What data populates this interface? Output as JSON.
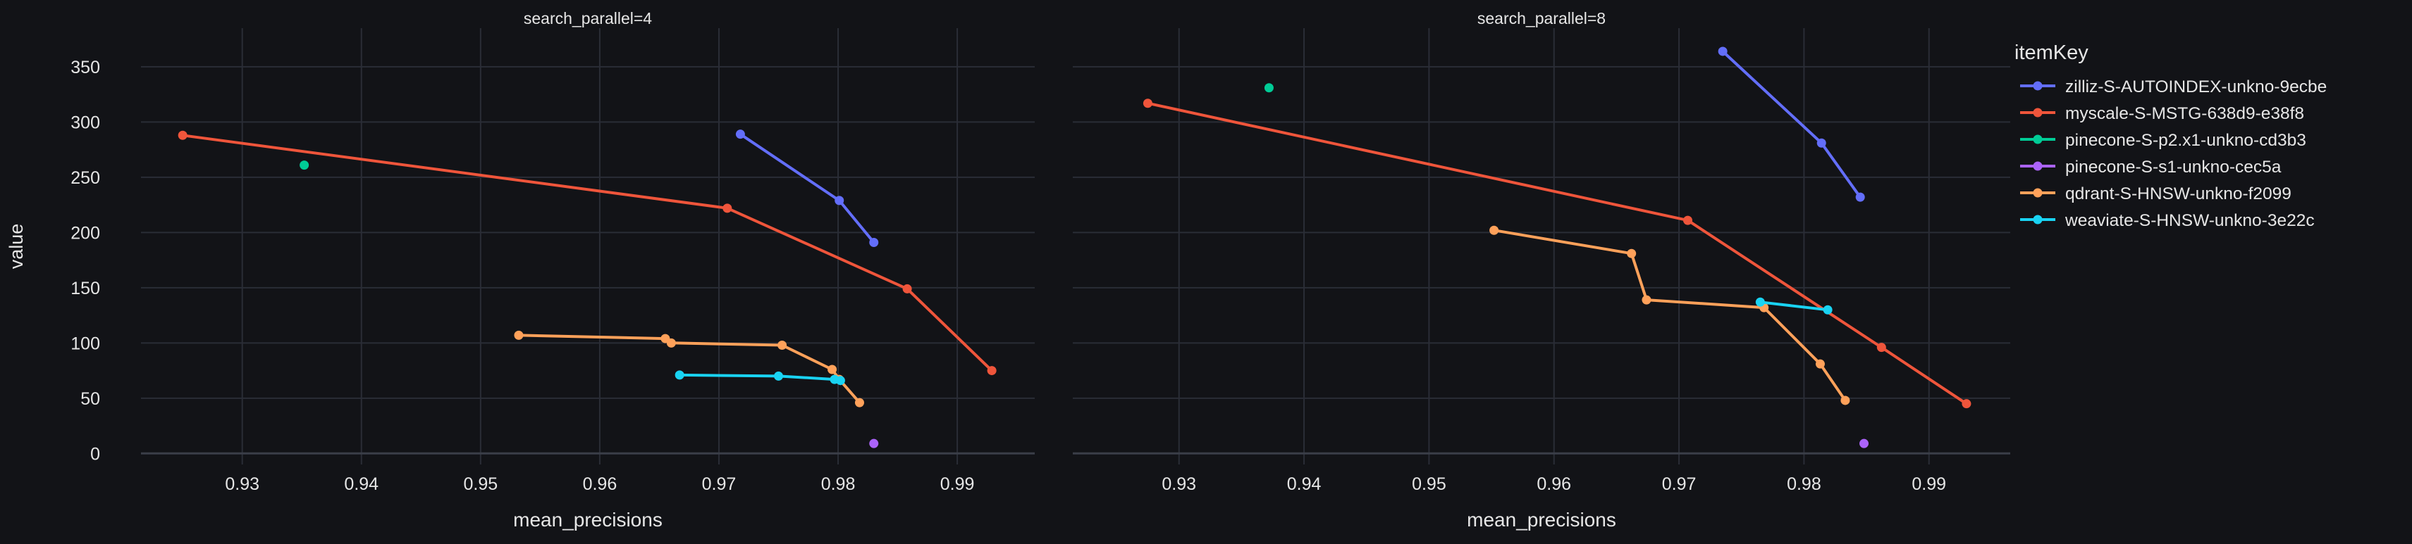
{
  "theme": {
    "background": "#121317",
    "plot_background": "#121317",
    "grid": "#2a2d36",
    "zero_line": "#3a3e48",
    "text": "#e6e6e6"
  },
  "chart_data": {
    "type": "line",
    "shared_ylabel": "value",
    "legend": {
      "title": "itemKey",
      "placement": "right"
    },
    "series_styles": [
      {
        "name": "zilliz-S-AUTOINDEX-unkno-9ecbe",
        "color": "#636efa",
        "mode": "lines+markers"
      },
      {
        "name": "myscale-S-MSTG-638d9-e38f8",
        "color": "#ef553b",
        "mode": "lines+markers"
      },
      {
        "name": "pinecone-S-p2.x1-unkno-cd3b3",
        "color": "#00cc96",
        "mode": "lines+markers"
      },
      {
        "name": "pinecone-S-s1-unkno-cec5a",
        "color": "#ab63fa",
        "mode": "lines+markers"
      },
      {
        "name": "qdrant-S-HNSW-unkno-f2099",
        "color": "#ffa15a",
        "mode": "lines+markers"
      },
      {
        "name": "weaviate-S-HNSW-unkno-3e22c",
        "color": "#19d3f3",
        "mode": "lines+markers"
      }
    ],
    "facets": [
      {
        "title": "search_parallel=4",
        "xlabel": "mean_precisions",
        "xlim": [
          0.9215,
          0.9965
        ],
        "ylim": [
          -10,
          385
        ],
        "xticks": [
          0.93,
          0.94,
          0.95,
          0.96,
          0.97,
          0.98,
          0.99
        ],
        "yticks": [
          0,
          50,
          100,
          150,
          200,
          250,
          300,
          350
        ],
        "grid": true,
        "series": [
          {
            "name": "zilliz-S-AUTOINDEX-unkno-9ecbe",
            "x": [
              0.9718,
              0.9801,
              0.983
            ],
            "y": [
              289,
              229,
              191
            ]
          },
          {
            "name": "myscale-S-MSTG-638d9-e38f8",
            "x": [
              0.925,
              0.9707,
              0.9858,
              0.9929
            ],
            "y": [
              288,
              222,
              149,
              75
            ]
          },
          {
            "name": "pinecone-S-p2.x1-unkno-cd3b3",
            "x": [
              0.9352
            ],
            "y": [
              261
            ]
          },
          {
            "name": "pinecone-S-s1-unkno-cec5a",
            "x": [
              0.983
            ],
            "y": [
              9
            ]
          },
          {
            "name": "qdrant-S-HNSW-unkno-f2099",
            "x": [
              0.9532,
              0.9655,
              0.966,
              0.9753,
              0.9795,
              0.9801,
              0.9818
            ],
            "y": [
              107,
              104,
              100,
              98,
              76,
              67,
              46
            ]
          },
          {
            "name": "weaviate-S-HNSW-unkno-3e22c",
            "x": [
              0.9667,
              0.975,
              0.9797,
              0.9802
            ],
            "y": [
              71,
              70,
              67,
              66
            ]
          }
        ]
      },
      {
        "title": "search_parallel=8",
        "xlabel": "mean_precisions",
        "xlim": [
          0.9215,
          0.9965
        ],
        "ylim": [
          -10,
          385
        ],
        "xticks": [
          0.93,
          0.94,
          0.95,
          0.96,
          0.97,
          0.98,
          0.99
        ],
        "yticks": [
          0,
          50,
          100,
          150,
          200,
          250,
          300,
          350
        ],
        "grid": true,
        "series": [
          {
            "name": "zilliz-S-AUTOINDEX-unkno-9ecbe",
            "x": [
              0.9735,
              0.9814,
              0.9845
            ],
            "y": [
              364,
              281,
              232
            ]
          },
          {
            "name": "myscale-S-MSTG-638d9-e38f8",
            "x": [
              0.9275,
              0.9707,
              0.9862,
              0.993
            ],
            "y": [
              317,
              211,
              96,
              45
            ]
          },
          {
            "name": "pinecone-S-p2.x1-unkno-cd3b3",
            "x": [
              0.9372
            ],
            "y": [
              331
            ]
          },
          {
            "name": "pinecone-S-s1-unkno-cec5a",
            "x": [
              0.9848
            ],
            "y": [
              9
            ]
          },
          {
            "name": "qdrant-S-HNSW-unkno-f2099",
            "x": [
              0.9552,
              0.9662,
              0.9674,
              0.9768,
              0.9813,
              0.9833
            ],
            "y": [
              202,
              181,
              139,
              132,
              81,
              48
            ]
          },
          {
            "name": "weaviate-S-HNSW-unkno-3e22c",
            "x": [
              0.9765,
              0.9819
            ],
            "y": [
              137,
              130
            ]
          }
        ]
      }
    ]
  }
}
